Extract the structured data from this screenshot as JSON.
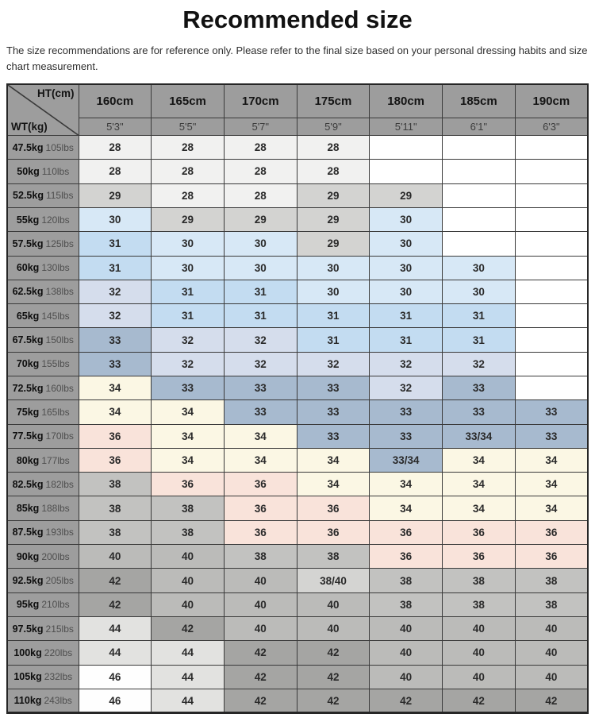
{
  "page": {
    "title": "Recommended size",
    "disclaimer": "The size recommendations are for reference only. Please refer to the final size based on your personal dressing habits and size chart measurement."
  },
  "colors": {
    "header_bg": "#9d9d9d",
    "row_header_bg": "#9d9d9d",
    "grid_border": "#3a3a3a",
    "outer_border": "#262626",
    "blank_cell": "#ffffff"
  },
  "table": {
    "corner": {
      "ht_label": "HT(cm)",
      "wt_label": "WT(kg)"
    },
    "columns": [
      {
        "cm": "160cm",
        "ft": "5'3\""
      },
      {
        "cm": "165cm",
        "ft": "5'5\""
      },
      {
        "cm": "170cm",
        "ft": "5'7\""
      },
      {
        "cm": "175cm",
        "ft": "5'9\""
      },
      {
        "cm": "180cm",
        "ft": "5'11\""
      },
      {
        "cm": "185cm",
        "ft": "6'1\""
      },
      {
        "cm": "190cm",
        "ft": "6'3\""
      }
    ],
    "value_colors": {
      "28": "#f1f1f0",
      "29": "#d3d3d1",
      "30": "#d7e8f6",
      "31": "#c3dcf1",
      "32": "#d5ddec",
      "33": "#a7bacf",
      "33/34": "#a7bacf",
      "34": "#fbf7e4",
      "36": "#f9e3da",
      "38": "#c2c2c0",
      "38/40": "#d4d4d2",
      "40": "#bbbbb9",
      "42": "#a5a5a3",
      "44": "#e2e2e0",
      "46": "#fefefe",
      "": "#ffffff"
    },
    "rows": [
      {
        "kg": "47.5kg",
        "lbs": "105lbs",
        "cells": [
          "28",
          "28",
          "28",
          "28",
          "",
          "",
          ""
        ]
      },
      {
        "kg": "50kg",
        "lbs": "110lbs",
        "cells": [
          "28",
          "28",
          "28",
          "28",
          "",
          "",
          ""
        ]
      },
      {
        "kg": "52.5kg",
        "lbs": "115lbs",
        "cells": [
          "29",
          "28",
          "28",
          "29",
          "29",
          "",
          ""
        ]
      },
      {
        "kg": "55kg",
        "lbs": "120lbs",
        "cells": [
          "30",
          "29",
          "29",
          "29",
          "30",
          "",
          ""
        ]
      },
      {
        "kg": "57.5kg",
        "lbs": "125lbs",
        "cells": [
          "31",
          "30",
          "30",
          "29",
          "30",
          "",
          ""
        ]
      },
      {
        "kg": "60kg",
        "lbs": "130lbs",
        "cells": [
          "31",
          "30",
          "30",
          "30",
          "30",
          "30",
          ""
        ]
      },
      {
        "kg": "62.5kg",
        "lbs": "138lbs",
        "cells": [
          "32",
          "31",
          "31",
          "30",
          "30",
          "30",
          ""
        ]
      },
      {
        "kg": "65kg",
        "lbs": "145lbs",
        "cells": [
          "32",
          "31",
          "31",
          "31",
          "31",
          "31",
          ""
        ]
      },
      {
        "kg": "67.5kg",
        "lbs": "150lbs",
        "cells": [
          "33",
          "32",
          "32",
          "31",
          "31",
          "31",
          ""
        ]
      },
      {
        "kg": "70kg",
        "lbs": "155lbs",
        "cells": [
          "33",
          "32",
          "32",
          "32",
          "32",
          "32",
          ""
        ]
      },
      {
        "kg": "72.5kg",
        "lbs": "160lbs",
        "cells": [
          "34",
          "33",
          "33",
          "33",
          "32",
          "33",
          ""
        ]
      },
      {
        "kg": "75kg",
        "lbs": "165lbs",
        "cells": [
          "34",
          "34",
          "33",
          "33",
          "33",
          "33",
          "33"
        ]
      },
      {
        "kg": "77.5kg",
        "lbs": "170lbs",
        "cells": [
          "36",
          "34",
          "34",
          "33",
          "33",
          "33/34",
          "33"
        ]
      },
      {
        "kg": "80kg",
        "lbs": "177lbs",
        "cells": [
          "36",
          "34",
          "34",
          "34",
          "33/34",
          "34",
          "34"
        ]
      },
      {
        "kg": "82.5kg",
        "lbs": "182lbs",
        "cells": [
          "38",
          "36",
          "36",
          "34",
          "34",
          "34",
          "34"
        ]
      },
      {
        "kg": "85kg",
        "lbs": "188lbs",
        "cells": [
          "38",
          "38",
          "36",
          "36",
          "34",
          "34",
          "34"
        ]
      },
      {
        "kg": "87.5kg",
        "lbs": "193lbs",
        "cells": [
          "38",
          "38",
          "36",
          "36",
          "36",
          "36",
          "36"
        ]
      },
      {
        "kg": "90kg",
        "lbs": "200lbs",
        "cells": [
          "40",
          "40",
          "38",
          "38",
          "36",
          "36",
          "36"
        ]
      },
      {
        "kg": "92.5kg",
        "lbs": "205lbs",
        "cells": [
          "42",
          "40",
          "40",
          "38/40",
          "38",
          "38",
          "38"
        ]
      },
      {
        "kg": "95kg",
        "lbs": "210lbs",
        "cells": [
          "42",
          "40",
          "40",
          "40",
          "38",
          "38",
          "38"
        ]
      },
      {
        "kg": "97.5kg",
        "lbs": "215lbs",
        "cells": [
          "44",
          "42",
          "40",
          "40",
          "40",
          "40",
          "40"
        ]
      },
      {
        "kg": "100kg",
        "lbs": "220lbs",
        "cells": [
          "44",
          "44",
          "42",
          "42",
          "40",
          "40",
          "40"
        ]
      },
      {
        "kg": "105kg",
        "lbs": "232lbs",
        "cells": [
          "46",
          "44",
          "42",
          "42",
          "40",
          "40",
          "40"
        ]
      },
      {
        "kg": "110kg",
        "lbs": "243lbs",
        "cells": [
          "46",
          "44",
          "42",
          "42",
          "42",
          "42",
          "42"
        ]
      }
    ]
  }
}
